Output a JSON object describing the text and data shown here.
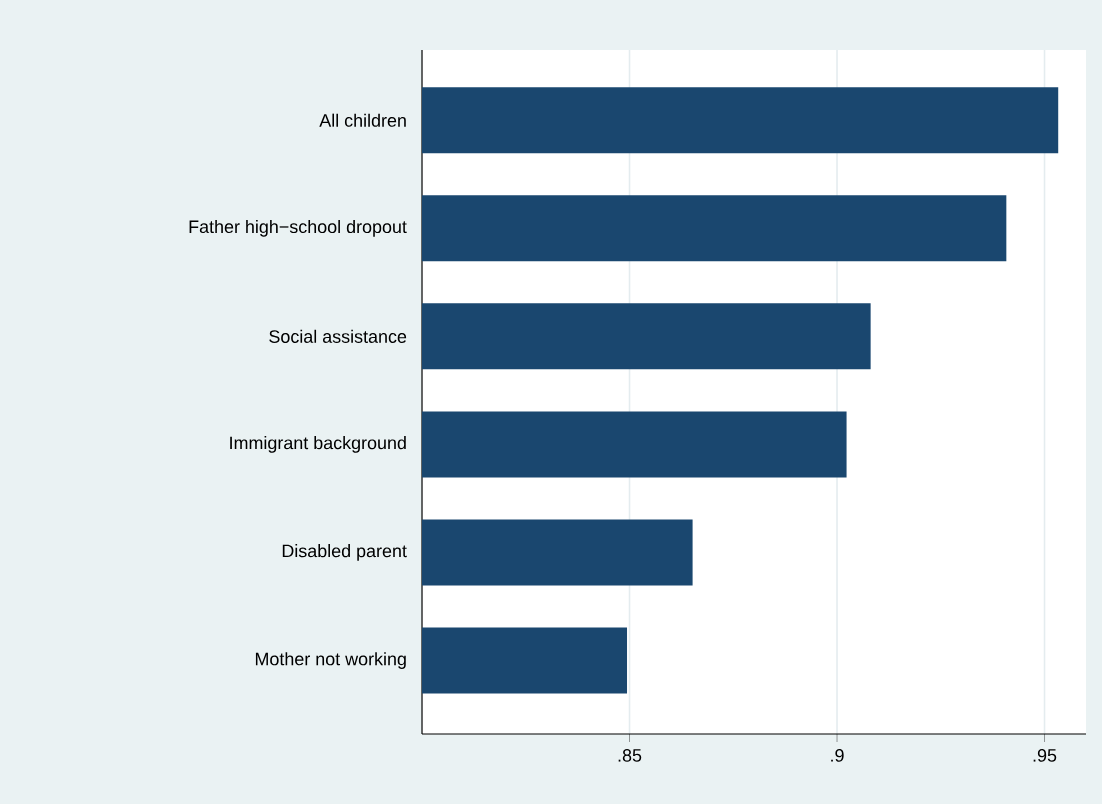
{
  "chart_data": {
    "type": "bar",
    "orientation": "horizontal",
    "categories": [
      "All children",
      "Father high−school dropout",
      "Social assistance",
      "Immigrant background",
      "Disabled parent",
      "Mother not working"
    ],
    "values": [
      0.9533,
      0.9408,
      0.9081,
      0.9023,
      0.8652,
      0.8494
    ],
    "color": "#1a476f",
    "xlim": [
      0.8,
      0.96
    ],
    "xticks": [
      {
        "value": 0.85,
        "label": ".85"
      },
      {
        "value": 0.9,
        "label": ".9"
      },
      {
        "value": 0.95,
        "label": ".95"
      }
    ],
    "grid": "x"
  }
}
